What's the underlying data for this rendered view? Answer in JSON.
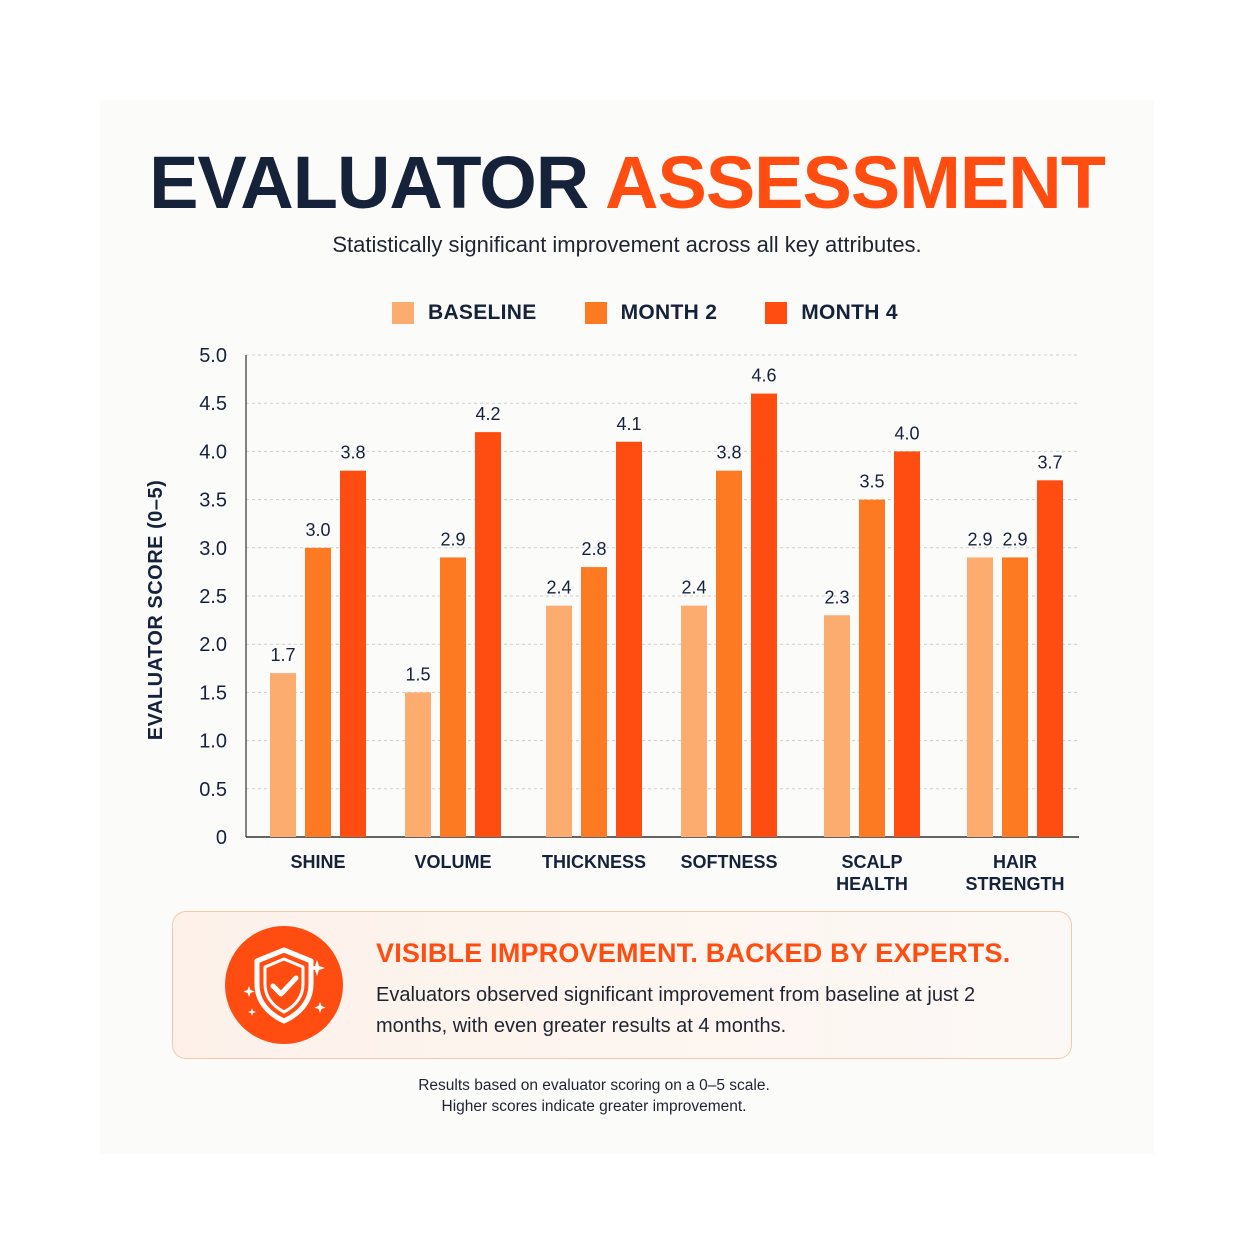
{
  "title": {
    "part1": "EVALUATOR",
    "part2": "ASSESSMENT"
  },
  "subtitle": "Statistically significant improvement across all key attributes.",
  "colors": {
    "baseline": "#fdac70",
    "month2": "#fd7a22",
    "month4": "#ff4d12",
    "accent": "#ff4d12",
    "ink": "#16213a"
  },
  "chart_data": {
    "type": "bar",
    "categories": [
      [
        "SHINE"
      ],
      [
        "VOLUME"
      ],
      [
        "THICKNESS"
      ],
      [
        "SOFTNESS"
      ],
      [
        "SCALP",
        "HEALTH"
      ],
      [
        "HAIR",
        "STRENGTH"
      ]
    ],
    "series": [
      {
        "name": "BASELINE",
        "values": [
          1.7,
          1.5,
          2.4,
          2.4,
          2.3,
          2.9
        ],
        "labels": [
          "1.7",
          "1.5",
          "2.4",
          "2.4",
          "2.3",
          "2.9"
        ]
      },
      {
        "name": "MONTH 2",
        "values": [
          3.0,
          2.9,
          2.8,
          3.8,
          3.5,
          2.9
        ],
        "labels": [
          "3.0",
          "2.9",
          "2.8",
          "3.8",
          "3.5",
          "2.9"
        ]
      },
      {
        "name": "MONTH 4",
        "values": [
          3.8,
          4.2,
          4.1,
          4.6,
          4.0,
          3.7
        ],
        "labels": [
          "3.8",
          "4.2",
          "4.1",
          "4.6",
          "4.0",
          "3.7"
        ]
      }
    ],
    "ylabel": "EVALUATOR SCORE (0–5)",
    "ylim": [
      0,
      5
    ],
    "yticks": [
      "0",
      "0.5",
      "1.0",
      "1.5",
      "2.0",
      "2.5",
      "3.0",
      "3.5",
      "4.0",
      "4.5",
      "5.0"
    ],
    "grid": true,
    "legend": "top"
  },
  "callout": {
    "icon": "shield-check-icon",
    "title": "VISIBLE IMPROVEMENT. BACKED BY EXPERTS.",
    "body": "Evaluators observed significant improvement from baseline at just 2 months, with even greater results at 4 months."
  },
  "footnote": {
    "line1": "Results based on evaluator scoring on a 0–5 scale.",
    "line2": "Higher scores indicate greater improvement."
  }
}
